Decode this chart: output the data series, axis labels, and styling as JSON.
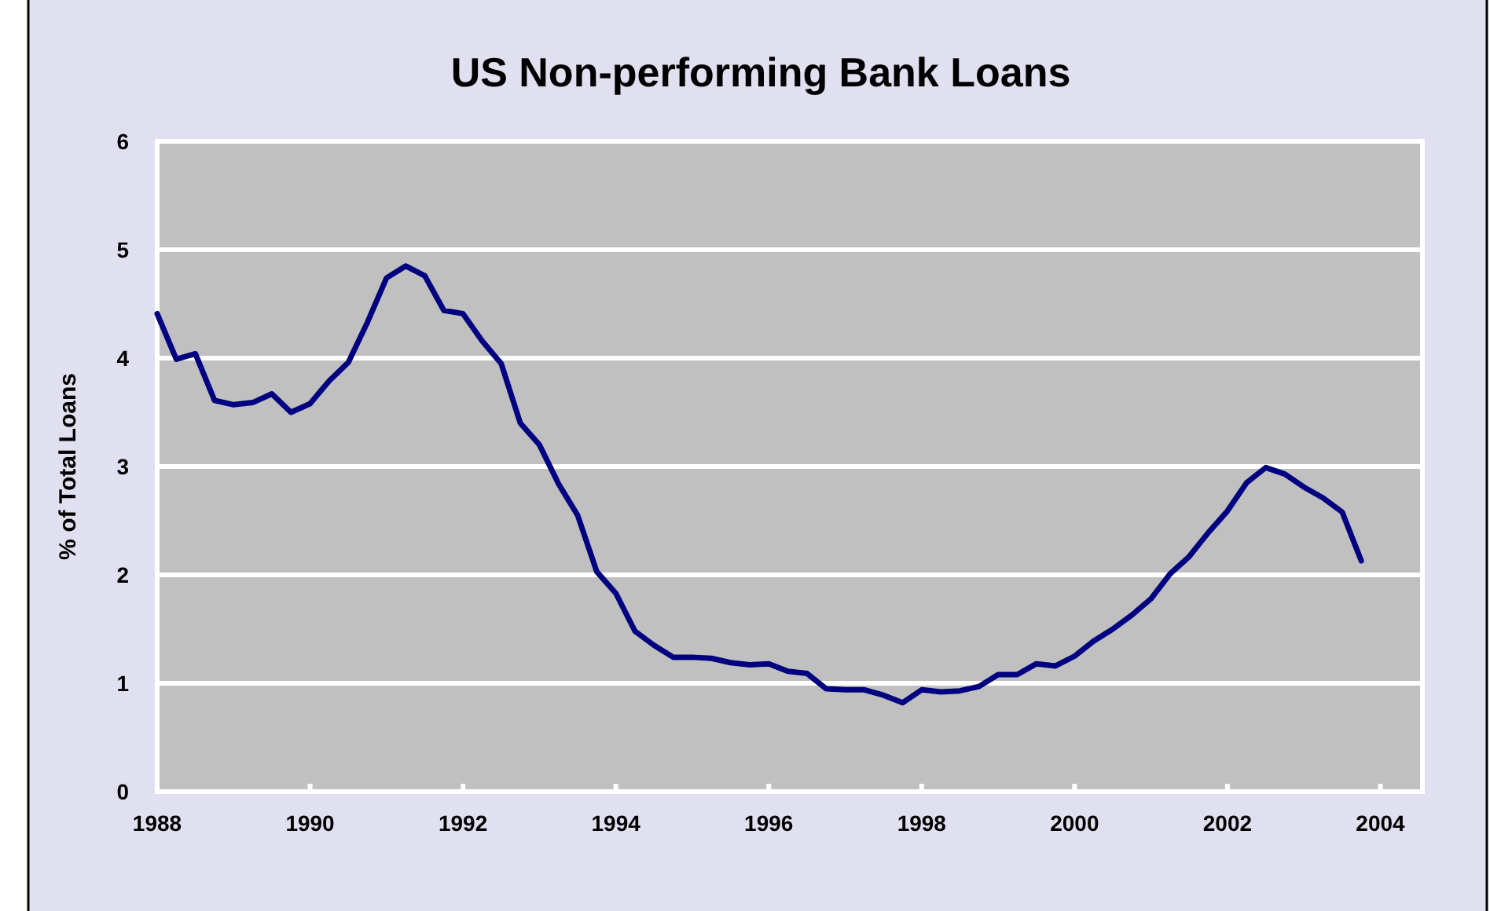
{
  "chart_data": {
    "type": "line",
    "title": "US Non-performing Bank Loans",
    "ylabel": "% of Total Loans",
    "x": [
      1988,
      1988.25,
      1988.5,
      1988.75,
      1989,
      1989.25,
      1989.5,
      1989.75,
      1990,
      1990.25,
      1990.5,
      1990.75,
      1991,
      1991.25,
      1991.5,
      1991.75,
      1992,
      1992.25,
      1992.5,
      1992.75,
      1993,
      1993.25,
      1993.5,
      1993.75,
      1994,
      1994.25,
      1994.5,
      1994.75,
      1995,
      1995.25,
      1995.5,
      1995.75,
      1996,
      1996.25,
      1996.5,
      1996.75,
      1997,
      1997.25,
      1997.5,
      1997.75,
      1998,
      1998.25,
      1998.5,
      1998.75,
      1999,
      1999.25,
      1999.5,
      1999.75,
      2000,
      2000.25,
      2000.5,
      2000.75,
      2001,
      2001.25,
      2001.5,
      2001.75,
      2002,
      2002.25,
      2002.5,
      2002.75,
      2003,
      2003.25,
      2003.5,
      2003.75
    ],
    "series": [
      {
        "color": "#000080",
        "values": [
          4.41,
          3.99,
          4.04,
          3.61,
          3.57,
          3.59,
          3.67,
          3.5,
          3.58,
          3.79,
          3.96,
          4.33,
          4.74,
          4.85,
          4.76,
          4.44,
          4.41,
          4.16,
          3.95,
          3.4,
          3.2,
          2.84,
          2.55,
          2.03,
          1.83,
          1.48,
          1.35,
          1.24,
          1.24,
          1.23,
          1.19,
          1.17,
          1.18,
          1.11,
          1.09,
          0.95,
          0.94,
          0.94,
          0.89,
          0.82,
          0.94,
          0.92,
          0.93,
          0.97,
          1.08,
          1.08,
          1.18,
          1.16,
          1.25,
          1.39,
          1.5,
          1.63,
          1.78,
          2.01,
          2.17,
          2.39,
          2.59,
          2.85,
          2.99,
          2.93,
          2.81,
          2.71,
          2.58,
          2.13
        ]
      }
    ],
    "xlim": [
      1988,
      2004.55
    ],
    "xticks": [
      1988,
      1990,
      1992,
      1994,
      1996,
      1998,
      2000,
      2002,
      2004
    ],
    "ylim": [
      0,
      6
    ],
    "yticks": [
      0,
      1,
      2,
      3,
      4,
      5,
      6
    ],
    "grid": "y",
    "marker": "none",
    "line_style": "solid"
  }
}
